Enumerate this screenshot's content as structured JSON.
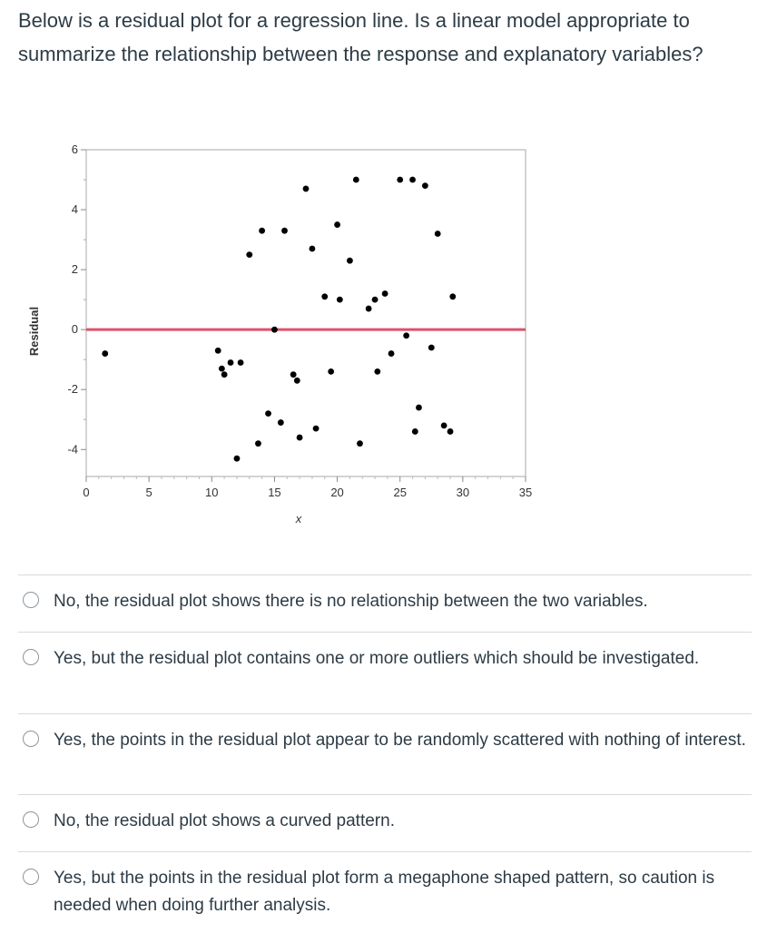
{
  "question": "Below is a residual plot for a regression line. Is a linear model appropriate to summarize the relationship between the response and explanatory variables?",
  "answers": [
    "No, the residual plot shows there is no relationship between the two variables.",
    "Yes, but the residual plot contains one or more outliers which should be investigated.",
    "Yes, the points in the residual plot appear to be randomly scattered with nothing of interest.",
    "No, the residual plot shows a curved pattern.",
    "Yes, but the points in the residual plot form a megaphone shaped pattern, so caution is needed when doing further analysis."
  ],
  "chart_data": {
    "type": "scatter",
    "xlabel": "x",
    "ylabel": "Residual",
    "xlim": [
      0,
      35
    ],
    "ylim": [
      -4.9,
      6
    ],
    "x_ticks": [
      0,
      5,
      10,
      15,
      20,
      25,
      30,
      35
    ],
    "y_ticks": [
      6,
      4,
      2,
      0,
      -2,
      -4
    ],
    "reference_line": {
      "y": 0,
      "color": "#d9536b"
    },
    "grid": false,
    "legend": "none",
    "points": [
      {
        "x": 1.5,
        "y": -0.8
      },
      {
        "x": 10.5,
        "y": -0.7
      },
      {
        "x": 10.8,
        "y": -1.3
      },
      {
        "x": 11.0,
        "y": -1.5
      },
      {
        "x": 11.5,
        "y": -1.1
      },
      {
        "x": 12.3,
        "y": -1.1
      },
      {
        "x": 12.0,
        "y": -4.3
      },
      {
        "x": 13.0,
        "y": 2.5
      },
      {
        "x": 13.7,
        "y": -3.8
      },
      {
        "x": 14.0,
        "y": 3.3
      },
      {
        "x": 14.5,
        "y": -2.8
      },
      {
        "x": 15.0,
        "y": 0.0
      },
      {
        "x": 15.5,
        "y": -3.1
      },
      {
        "x": 15.8,
        "y": 3.3
      },
      {
        "x": 16.5,
        "y": -1.5
      },
      {
        "x": 16.8,
        "y": -1.7
      },
      {
        "x": 17.0,
        "y": -3.6
      },
      {
        "x": 17.5,
        "y": 4.7
      },
      {
        "x": 18.0,
        "y": 2.7
      },
      {
        "x": 18.3,
        "y": -3.3
      },
      {
        "x": 19.0,
        "y": 1.1
      },
      {
        "x": 19.5,
        "y": -1.4
      },
      {
        "x": 20.0,
        "y": 3.5
      },
      {
        "x": 20.2,
        "y": 1.0
      },
      {
        "x": 21.0,
        "y": 2.3
      },
      {
        "x": 21.5,
        "y": 5.0
      },
      {
        "x": 21.8,
        "y": -3.8
      },
      {
        "x": 22.5,
        "y": 0.7
      },
      {
        "x": 23.0,
        "y": 1.0
      },
      {
        "x": 23.2,
        "y": -1.4
      },
      {
        "x": 23.8,
        "y": 1.2
      },
      {
        "x": 24.3,
        "y": -0.8
      },
      {
        "x": 25.0,
        "y": 5.0
      },
      {
        "x": 25.5,
        "y": -0.2
      },
      {
        "x": 26.0,
        "y": 5.0
      },
      {
        "x": 26.2,
        "y": -3.4
      },
      {
        "x": 26.5,
        "y": -2.6
      },
      {
        "x": 27.0,
        "y": 4.8
      },
      {
        "x": 27.5,
        "y": -0.6
      },
      {
        "x": 28.0,
        "y": 3.2
      },
      {
        "x": 28.5,
        "y": -3.2
      },
      {
        "x": 29.0,
        "y": -3.4
      },
      {
        "x": 29.2,
        "y": 1.1
      }
    ]
  }
}
